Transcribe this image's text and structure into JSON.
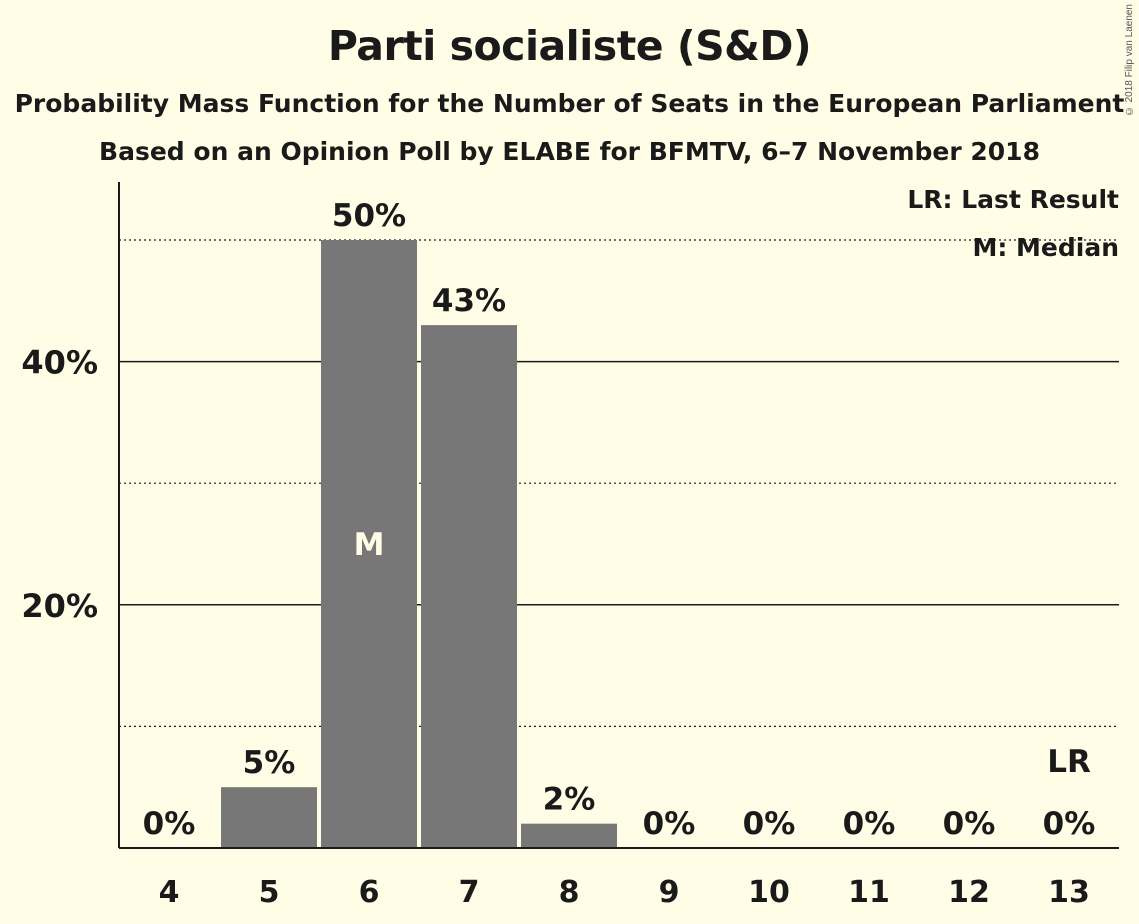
{
  "chart_data": {
    "type": "bar",
    "title": "Parti socialiste (S&D)",
    "subtitle": "Probability Mass Function for the Number of Seats in the European Parliament",
    "subtitle2": "Based on an Opinion Poll by ELABE for BFMTV, 6–7 November 2018",
    "copyright": "© 2018 Filip van Laenen",
    "legend": {
      "last_result": "LR: Last Result",
      "median": "M: Median"
    },
    "categories": [
      "4",
      "5",
      "6",
      "7",
      "8",
      "9",
      "10",
      "11",
      "12",
      "13"
    ],
    "values": [
      0,
      5,
      50,
      43,
      2,
      0,
      0,
      0,
      0,
      0
    ],
    "value_labels": [
      "0%",
      "5%",
      "50%",
      "43%",
      "2%",
      "0%",
      "0%",
      "0%",
      "0%",
      "0%"
    ],
    "y_ticks": [
      {
        "value": 20,
        "label": "20%"
      },
      {
        "value": 40,
        "label": "40%"
      }
    ],
    "y_minor_gridlines": [
      10,
      30,
      50
    ],
    "ylim": [
      0,
      55
    ],
    "median_category": "6",
    "median_marker": "M",
    "last_result_category": "13",
    "last_result_marker": "LR",
    "colors": {
      "bar": "#777777",
      "background": "#fffde6",
      "axis": "#1a1a1a"
    }
  }
}
